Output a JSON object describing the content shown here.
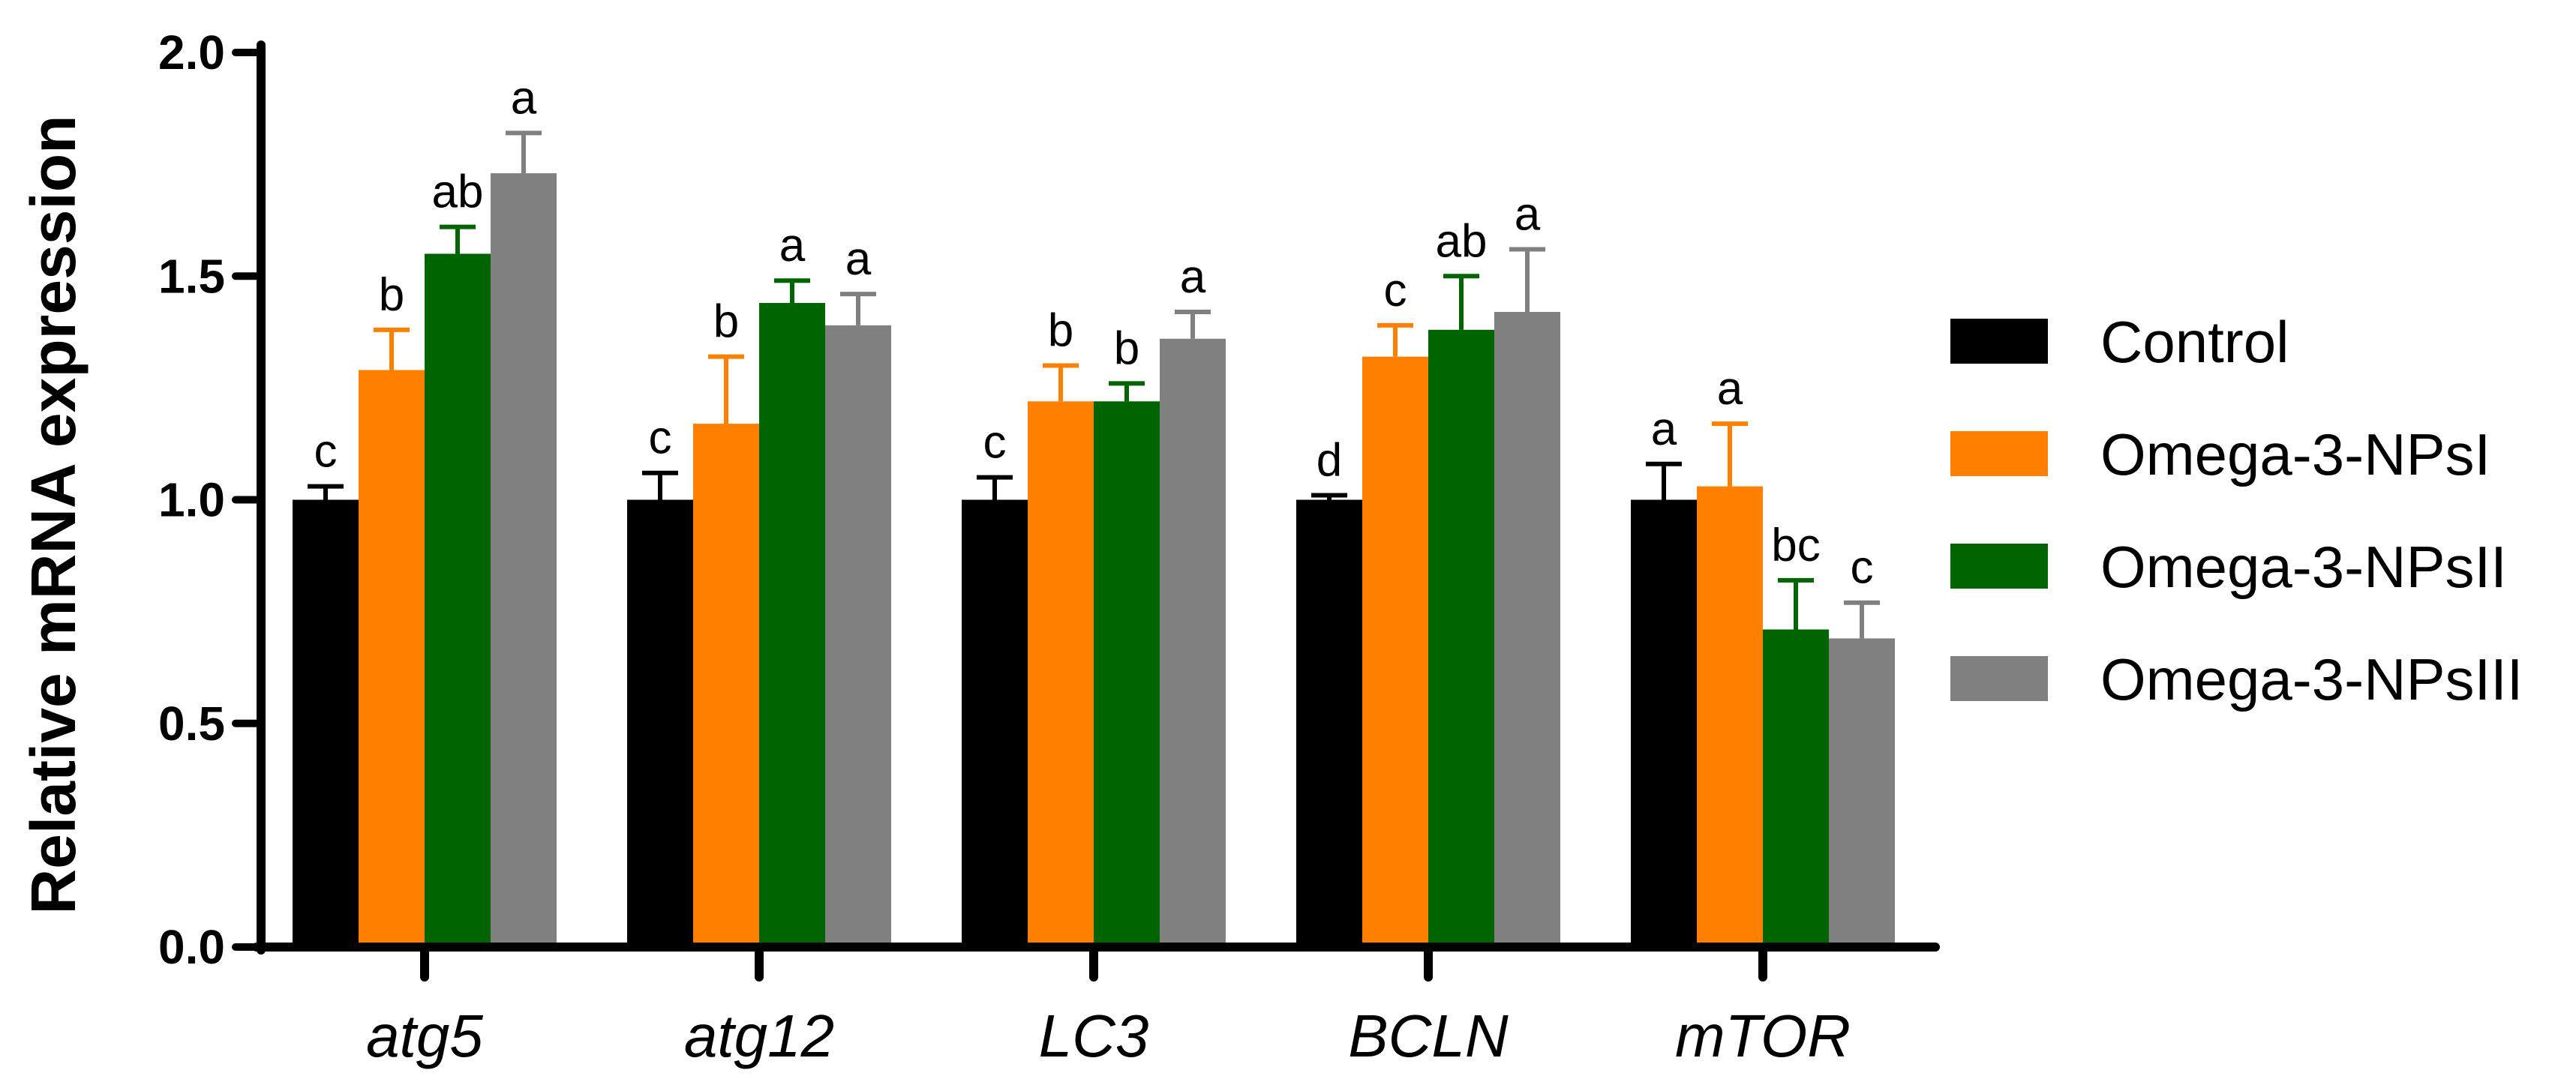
{
  "chart_data": {
    "type": "bar",
    "title": "",
    "xlabel": "",
    "ylabel": "Relative mRNA expression",
    "ylim": [
      0,
      2.0
    ],
    "yticks": [
      0.0,
      0.5,
      1.0,
      1.5,
      2.0
    ],
    "ytick_labels": [
      "0.0",
      "0.5",
      "1.0",
      "1.5",
      "2.0"
    ],
    "categories": [
      "atg5",
      "atg12",
      "LC3",
      "BCLN",
      "mTOR"
    ],
    "legend_position": "right",
    "series": [
      {
        "name": "Control",
        "color": "#000000",
        "values": [
          1.0,
          1.0,
          1.0,
          1.0,
          1.0
        ],
        "errors": [
          0.03,
          0.06,
          0.05,
          0.01,
          0.08
        ],
        "letters": [
          "c",
          "c",
          "c",
          "d",
          "a"
        ]
      },
      {
        "name": "Omega-3-NPsI",
        "color": "#ff8000",
        "values": [
          1.29,
          1.17,
          1.22,
          1.32,
          1.03
        ],
        "errors": [
          0.09,
          0.15,
          0.08,
          0.07,
          0.14
        ],
        "letters": [
          "b",
          "b",
          "b",
          "c",
          "a"
        ]
      },
      {
        "name": "Omega-3-NPsII",
        "color": "#006400",
        "values": [
          1.55,
          1.44,
          1.22,
          1.38,
          0.71
        ],
        "errors": [
          0.06,
          0.05,
          0.04,
          0.12,
          0.11
        ],
        "letters": [
          "ab",
          "a",
          "b",
          "ab",
          "bc"
        ]
      },
      {
        "name": "Omega-3-NPsIII",
        "color": "#808080",
        "values": [
          1.73,
          1.39,
          1.36,
          1.42,
          0.69
        ],
        "errors": [
          0.09,
          0.07,
          0.06,
          0.14,
          0.08
        ],
        "letters": [
          "a",
          "a",
          "a",
          "a",
          "c"
        ]
      }
    ]
  }
}
